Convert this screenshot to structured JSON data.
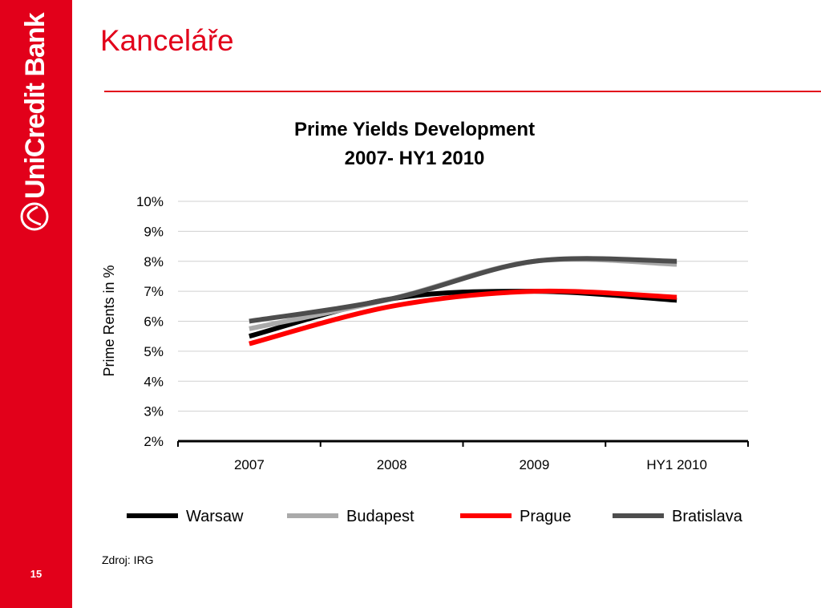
{
  "slide": {
    "title": "Kanceláře",
    "page_number": "15",
    "source": "Zdroj: IRG"
  },
  "brand": {
    "name": "UniCredit Bank",
    "color": "#e2001a"
  },
  "chart_data": {
    "type": "line",
    "title_line1": "Prime Yields Development",
    "title_line2": "2007- HY1 2010",
    "ylabel": "Prime Rents in %",
    "xlabel": "",
    "categories": [
      "2007",
      "2008",
      "2009",
      "HY1 2010"
    ],
    "ylim": [
      2,
      10
    ],
    "yticks": [
      "2%",
      "3%",
      "4%",
      "5%",
      "6%",
      "7%",
      "8%",
      "9%",
      "10%"
    ],
    "grid": true,
    "legend_position": "bottom",
    "series": [
      {
        "name": "Warsaw",
        "color": "#000000",
        "values": [
          5.5,
          6.75,
          7.0,
          6.7
        ]
      },
      {
        "name": "Budapest",
        "color": "#aaaaaa",
        "values": [
          5.75,
          6.75,
          8.0,
          7.9
        ]
      },
      {
        "name": "Prague",
        "color": "#ff0000",
        "values": [
          5.25,
          6.5,
          7.0,
          6.8
        ]
      },
      {
        "name": "Bratislava",
        "color": "#4d4d4d",
        "values": [
          6.0,
          6.75,
          8.0,
          8.0
        ]
      }
    ]
  }
}
